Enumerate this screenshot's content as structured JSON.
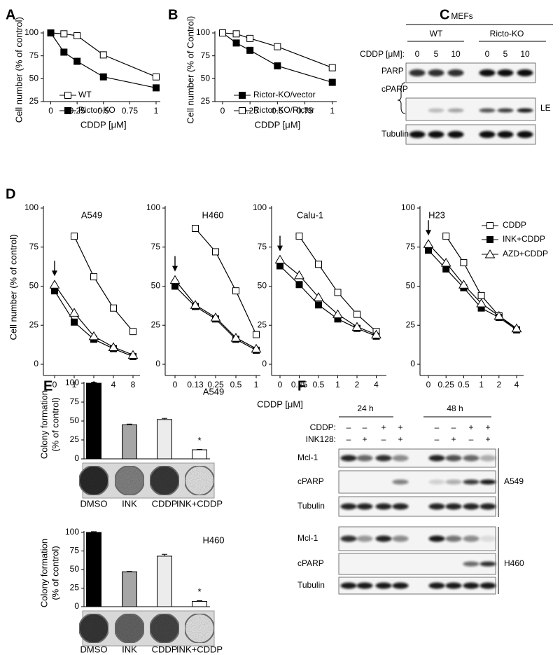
{
  "panel_labels": [
    "A",
    "B",
    "C",
    "D",
    "E",
    "F"
  ],
  "chart_data": [
    {
      "type": "line",
      "xlabel": "CDDP [μM]",
      "ylabel": "Cell number (% of control)",
      "x": [
        0,
        0.125,
        0.25,
        0.5,
        1
      ],
      "xlim": [
        -0.07,
        1.04
      ],
      "xticks": [
        0,
        0.25,
        0.5,
        0.75,
        1
      ],
      "ylim": [
        25,
        102
      ],
      "yticks": [
        25,
        50,
        75,
        100
      ],
      "color": "#000000",
      "series": [
        {
          "name": "WT",
          "marker": "open-square",
          "values": [
            100,
            99,
            97,
            76,
            52
          ]
        },
        {
          "name": "Rictor-KO",
          "marker": "filled-square",
          "values": [
            100,
            79,
            69,
            52,
            40
          ]
        }
      ]
    },
    {
      "type": "line",
      "xlabel": "CDDP [μM]",
      "ylabel": "Cell number (% of Control)",
      "x": [
        0,
        0.125,
        0.25,
        0.5,
        1
      ],
      "xlim": [
        -0.07,
        1.04
      ],
      "xticks": [
        0,
        0.25,
        0.5,
        0.75,
        1
      ],
      "ylim": [
        25,
        102
      ],
      "yticks": [
        25,
        50,
        75,
        100
      ],
      "color": "#000000",
      "series": [
        {
          "name": "Rictor-KO/vector",
          "marker": "filled-square",
          "values": [
            100,
            89,
            81,
            64,
            46
          ]
        },
        {
          "name": "Rictor-KO/Rictor",
          "marker": "open-square",
          "values": [
            100,
            99,
            94,
            85,
            62
          ]
        }
      ]
    },
    {
      "type": "line",
      "xlabel": "CDDP [μM]",
      "ylabel": "Cell number (% of control)",
      "ylim": [
        0,
        100
      ],
      "yticks": [
        0,
        25,
        50,
        75,
        100
      ],
      "color": "#000000",
      "legend": [
        {
          "name": "CDDP",
          "marker": "open-square"
        },
        {
          "name": "INK+CDDP",
          "marker": "filled-square"
        },
        {
          "name": "AZD+CDDP",
          "marker": "open-triangle"
        }
      ],
      "subplots": [
        {
          "title": "A549",
          "categories": [
            "0",
            "1",
            "2",
            "4",
            "8"
          ],
          "series": [
            [
              null,
              82,
              56,
              36,
              21
            ],
            [
              47,
              27,
              16,
              10,
              5
            ],
            [
              51,
              33,
              18,
              11,
              6
            ]
          ]
        },
        {
          "title": "H460",
          "categories": [
            "0",
            "0.13",
            "0.25",
            "0.5",
            "1"
          ],
          "series": [
            [
              null,
              87,
              72,
              47,
              19
            ],
            [
              50,
              37,
              29,
              16,
              9
            ],
            [
              54,
              38,
              30,
              17,
              10
            ]
          ]
        },
        {
          "title": "Calu-1",
          "categories": [
            "0",
            "0.25",
            "0.5",
            "1",
            "2",
            "4"
          ],
          "series": [
            [
              null,
              82,
              64,
              46,
              32,
              21
            ],
            [
              63,
              51,
              38,
              29,
              23,
              18
            ],
            [
              67,
              57,
              43,
              32,
              24,
              19
            ]
          ]
        },
        {
          "title": "H23",
          "categories": [
            "0",
            "0.25",
            "0.5",
            "1",
            "2",
            "4"
          ],
          "series": [
            [
              null,
              82,
              65,
              44,
              31,
              22
            ],
            [
              73,
              61,
              49,
              36,
              30,
              22
            ],
            [
              77,
              65,
              51,
              39,
              31,
              23
            ]
          ]
        }
      ]
    },
    {
      "type": "bar",
      "title": "A549",
      "ylabel": [
        "Colony formation",
        "(% of control)"
      ],
      "categories": [
        "DMSO",
        "INK",
        "CDDP",
        "INK+CDDP"
      ],
      "values": [
        100,
        45,
        52,
        12
      ],
      "errors": [
        1,
        1,
        1.5,
        0.5
      ],
      "colors": [
        "#000000",
        "#a6a6a6",
        "#ececec",
        "#ffffff"
      ],
      "ylim": [
        0,
        100
      ],
      "yticks": [
        0,
        25,
        50,
        75,
        100
      ],
      "annotations": [
        {
          "text": "*",
          "category": "INK+CDDP"
        }
      ]
    },
    {
      "type": "bar",
      "title": "H460",
      "ylabel": [
        "Colony formation",
        "(% of control)"
      ],
      "categories": [
        "DMSO",
        "INK",
        "CDDP",
        "INK+CDDP"
      ],
      "values": [
        100,
        47,
        68,
        7
      ],
      "errors": [
        1,
        0.5,
        2.5,
        1
      ],
      "colors": [
        "#000000",
        "#a6a6a6",
        "#ececec",
        "#ffffff"
      ],
      "ylim": [
        0,
        100
      ],
      "yticks": [
        0,
        25,
        50,
        75,
        100
      ],
      "annotations": [
        {
          "text": "*",
          "category": "INK+CDDP"
        }
      ]
    }
  ],
  "blots": {
    "C": {
      "header": "MEFs",
      "groups": [
        "WT",
        "Ricto-KO"
      ],
      "lane_label": "CDDP [μM]:",
      "lanes": [
        "0",
        "5",
        "10",
        "0",
        "5",
        "10"
      ],
      "rows": [
        "PARP",
        "cPARP",
        "Tubulin"
      ],
      "note": "LE"
    },
    "F": {
      "groups": [
        "24 h",
        "48 h"
      ],
      "treatments": [
        {
          "label": "CDDP:",
          "signs": [
            "–",
            "–",
            "+",
            "+",
            "–",
            "–",
            "+",
            "+"
          ]
        },
        {
          "label": "INK128:",
          "signs": [
            "–",
            "+",
            "–",
            "+",
            "–",
            "+",
            "–",
            "+"
          ]
        }
      ],
      "cell_lines": [
        {
          "name": "A549",
          "rows": [
            "Mcl-1",
            "cPARP",
            "Tubulin"
          ]
        },
        {
          "name": "H460",
          "rows": [
            "Mcl-1",
            "cPARP",
            "Tubulin"
          ]
        }
      ]
    }
  }
}
